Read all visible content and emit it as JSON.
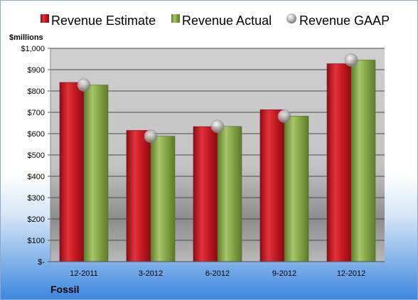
{
  "chart_data": {
    "type": "bar",
    "unit_label": "$millions",
    "footer_label": "Fossil",
    "categories": [
      "12-2011",
      "3-2012",
      "6-2012",
      "9-2012",
      "12-2012"
    ],
    "series": [
      {
        "name": "Revenue Estimate",
        "type": "bar",
        "color": "#d0202a",
        "values": [
          840,
          615,
          633,
          712,
          928
        ]
      },
      {
        "name": "Revenue Actual",
        "type": "bar",
        "color": "#8aab4a",
        "values": [
          828,
          588,
          634,
          682,
          945
        ]
      },
      {
        "name": "Revenue GAAP",
        "type": "marker",
        "color": "#b8b8b8",
        "values": [
          828,
          588,
          634,
          682,
          945
        ]
      }
    ],
    "y_tick_labels": [
      "$-",
      "$100",
      "$200",
      "$300",
      "$400",
      "$500",
      "$600",
      "$700",
      "$800",
      "$900",
      "$1,000"
    ],
    "ylim": [
      0,
      1000
    ],
    "grid": true,
    "legend_position": "top"
  }
}
